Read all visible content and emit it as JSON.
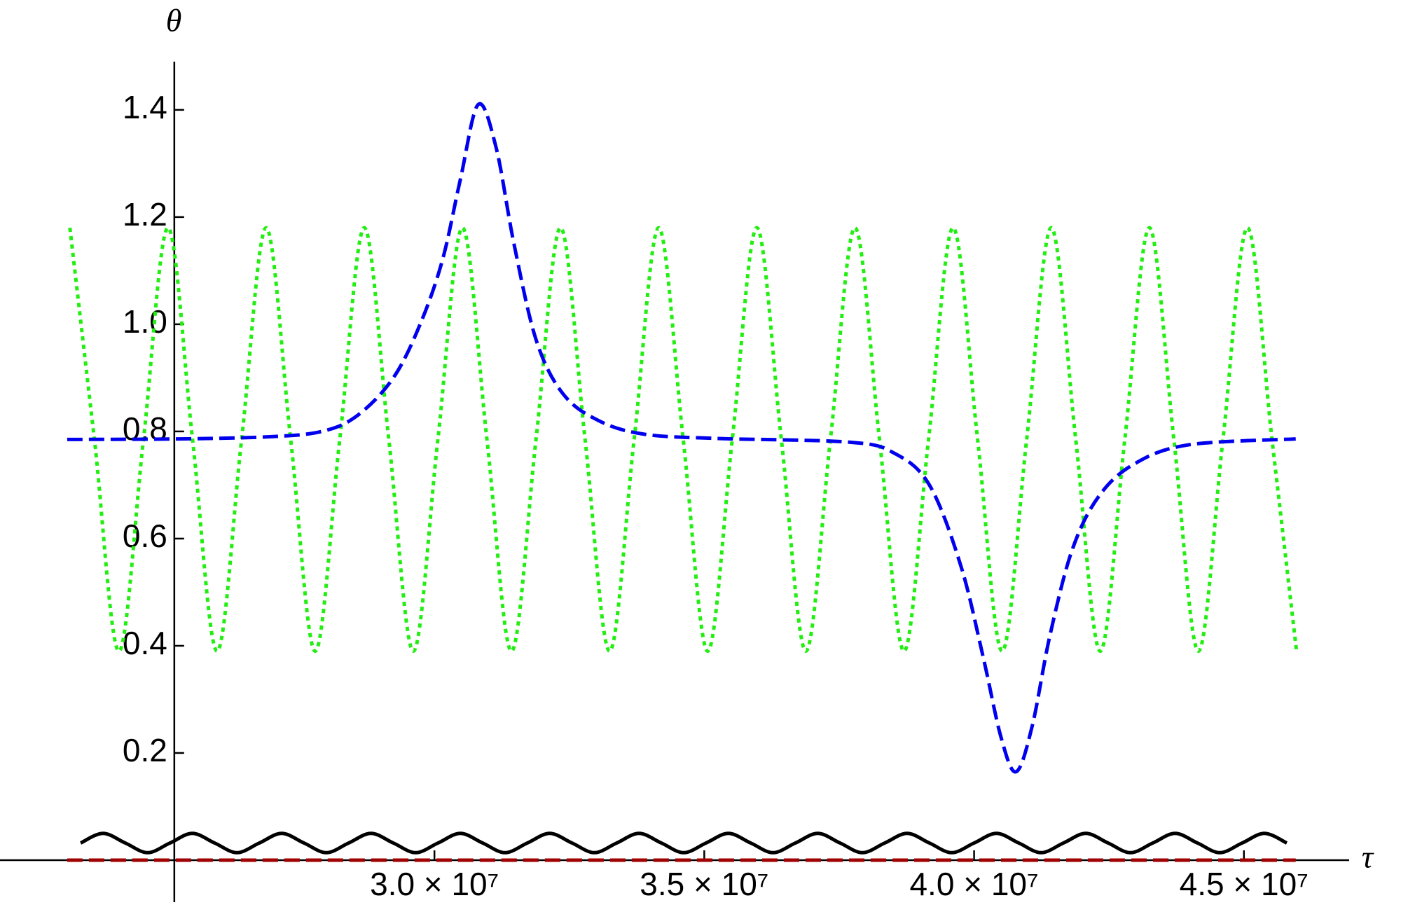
{
  "chart_data": {
    "type": "line",
    "xlabel": "τ",
    "ylabel": "θ",
    "xlim": [
      21950000,
      46950000
    ],
    "ylim": [
      0,
      1.49
    ],
    "axis_origin": [
      25180000,
      0
    ],
    "xticks": [
      {
        "value": 30000000,
        "label": "3.0 × 10⁷"
      },
      {
        "value": 35000000,
        "label": "3.5 × 10⁷"
      },
      {
        "value": 40000000,
        "label": "4.0 × 10⁷"
      },
      {
        "value": 45000000,
        "label": "4.5 × 10⁷"
      }
    ],
    "yticks": [
      0.2,
      0.4,
      0.6,
      0.8,
      {
        "value": 1,
        "label": "1.0"
      },
      1.2,
      1.4
    ],
    "series": [
      {
        "color": "#22ee11",
        "style": "dotted",
        "x": [
          23245000,
          23699600,
          24154200,
          24608800,
          25063400,
          25518000,
          25972600,
          26427200,
          26881800,
          27336400,
          27791000,
          28245600,
          28700200,
          29154800,
          29609400,
          30064000,
          30518600,
          30973200,
          31427800,
          31882400,
          32337000,
          32791600,
          33246200,
          33700800,
          34155400,
          34610000,
          35064600,
          35519200,
          35973800,
          36428400,
          36883000,
          37337600,
          37792200,
          38246800,
          38701400,
          39156000,
          39610600,
          40065200,
          40519800,
          40974400,
          41429000,
          41883600,
          42338200,
          42792800,
          43247400,
          43702000,
          44156600,
          44611200,
          45065800,
          45520400,
          45975000
        ],
        "values": [
          1.18,
          0.785,
          0.39,
          0.785,
          1.18,
          0.785,
          0.39,
          0.785,
          1.18,
          0.785,
          0.39,
          0.785,
          1.18,
          0.785,
          0.39,
          0.785,
          1.18,
          0.785,
          0.39,
          0.785,
          1.18,
          0.785,
          0.39,
          0.785,
          1.18,
          0.785,
          0.39,
          0.785,
          1.18,
          0.785,
          0.39,
          0.785,
          1.18,
          0.785,
          0.39,
          0.785,
          1.18,
          0.785,
          0.39,
          0.785,
          1.18,
          0.785,
          0.39,
          0.785,
          1.18,
          0.785,
          0.39,
          0.785,
          1.18,
          0.785,
          0.39
        ]
      },
      {
        "color": "#0000ee",
        "style": "dashed",
        "x": [
          23195000,
          25265000,
          26920000,
          27914000,
          28576000,
          29238000,
          29735000,
          30149000,
          30480000,
          30811000,
          31142000,
          31474000,
          31887000,
          32384000,
          33046000,
          33874000,
          35199000,
          37682000,
          38510000,
          39172000,
          39752000,
          40166000,
          40497000,
          40778000,
          41076000,
          41407000,
          41821000,
          42318000,
          42980000,
          43974000,
          45960000
        ],
        "values": [
          0.785,
          0.786,
          0.79,
          0.8,
          0.83,
          0.9,
          1.0,
          1.12,
          1.27,
          1.41,
          1.33,
          1.15,
          0.97,
          0.87,
          0.82,
          0.795,
          0.787,
          0.78,
          0.76,
          0.7,
          0.55,
          0.38,
          0.23,
          0.165,
          0.25,
          0.42,
          0.58,
          0.68,
          0.74,
          0.775,
          0.786
        ]
      },
      {
        "color": "#000000",
        "style": "solid",
        "x": [
          23444000,
          23857900,
          24271800,
          24685700,
          25099600,
          25513500,
          25927400,
          26341300,
          26755200,
          27169100,
          27583000,
          27996900,
          28410800,
          28824700,
          29238600,
          29652500,
          30066400,
          30480300,
          30894200,
          31308100,
          31722000,
          32135900,
          32549800,
          32963700,
          33377600,
          33791500,
          34205400,
          34619300,
          35033200,
          35447100,
          35861000,
          36274900,
          36688800,
          37102700,
          37516600,
          37930500,
          38344400,
          38758300,
          39172200,
          39586100,
          40000000,
          40413900,
          40827800,
          41241700,
          41655600,
          42069500,
          42483400,
          42897300,
          43311200,
          43725100,
          44139000,
          44552900,
          44966800,
          45380700,
          45794600
        ],
        "values": [
          0.032,
          0.05,
          0.032,
          0.014,
          0.032,
          0.05,
          0.032,
          0.014,
          0.032,
          0.05,
          0.032,
          0.014,
          0.032,
          0.05,
          0.032,
          0.014,
          0.032,
          0.05,
          0.032,
          0.014,
          0.032,
          0.05,
          0.032,
          0.014,
          0.032,
          0.05,
          0.032,
          0.014,
          0.032,
          0.05,
          0.032,
          0.014,
          0.032,
          0.05,
          0.032,
          0.014,
          0.032,
          0.05,
          0.032,
          0.014,
          0.032,
          0.05,
          0.032,
          0.014,
          0.032,
          0.05,
          0.032,
          0.014,
          0.032,
          0.05,
          0.032,
          0.014,
          0.032,
          0.05,
          0.032
        ]
      },
      {
        "color": "#a00000",
        "style": "dashed",
        "x": [
          23195000,
          45960000
        ],
        "values": [
          0,
          0
        ]
      }
    ]
  }
}
